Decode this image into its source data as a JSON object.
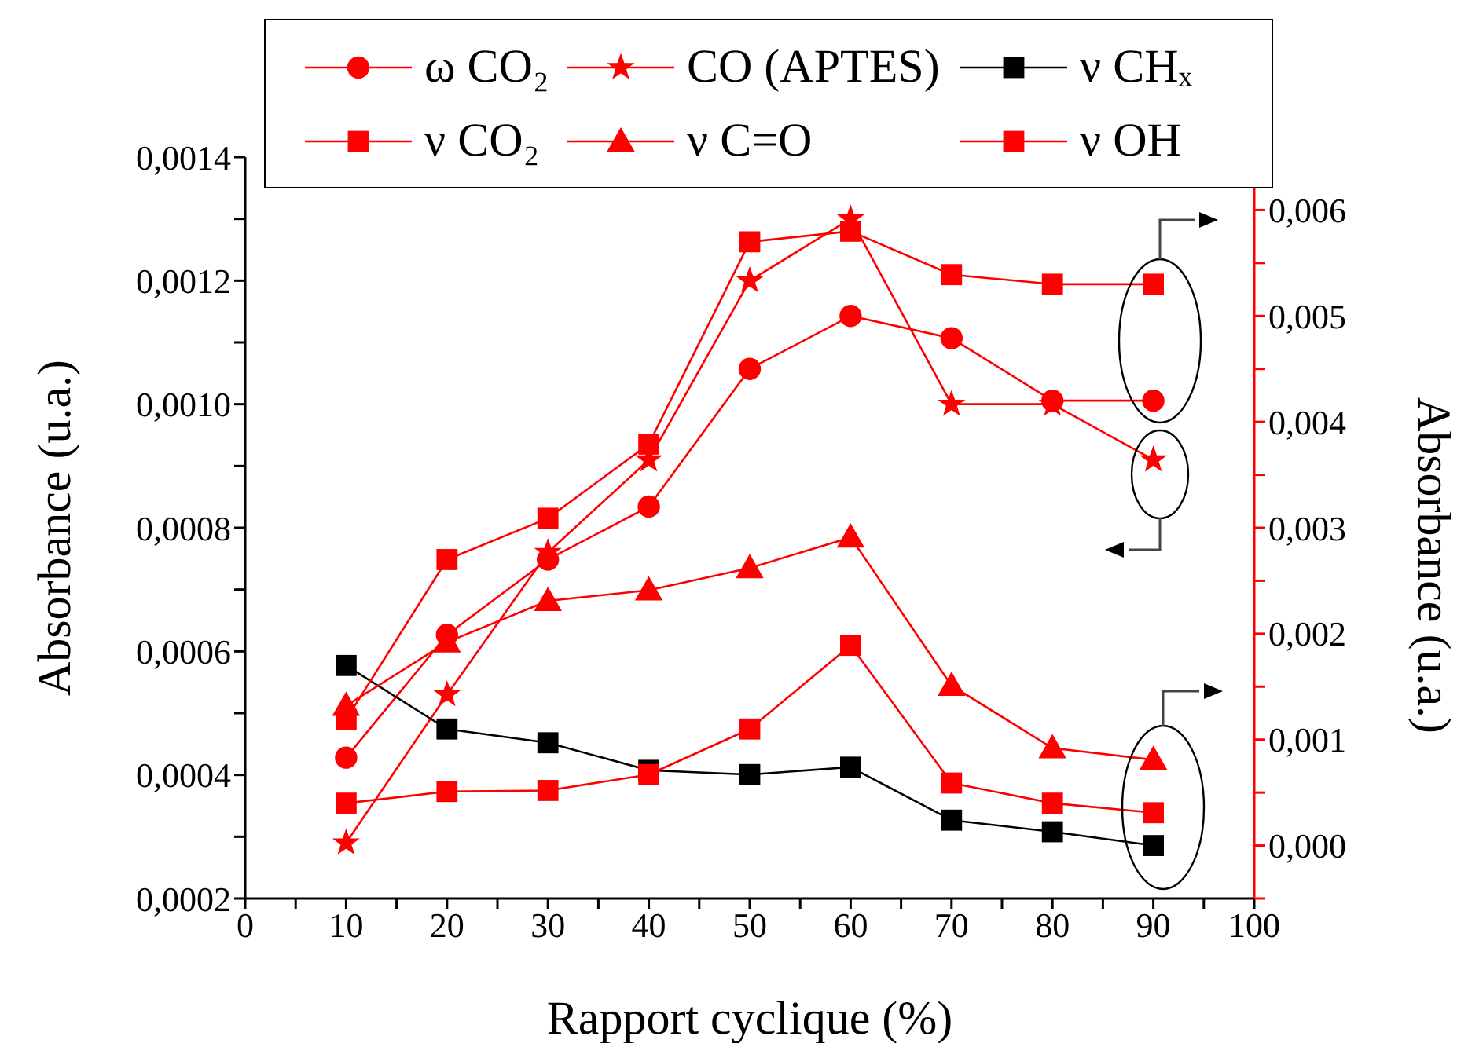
{
  "chart_data": {
    "type": "line",
    "xlabel": "Rapport cyclique (%)",
    "ylabel": "Absorbance (u.a.)",
    "y2label": "Absorbance (u.a.)",
    "x": [
      10,
      20,
      30,
      40,
      50,
      60,
      70,
      80,
      90
    ],
    "series": [
      {
        "name": "ω CO₂",
        "color": "#ff0000",
        "marker": "circle",
        "axis": "y2",
        "values": [
          0.00083,
          0.00199,
          0.0027,
          0.0032,
          0.0045,
          0.005,
          0.00479,
          0.0042,
          0.0042
        ]
      },
      {
        "name": "CO (APTES)",
        "color": "#ff0000",
        "marker": "star",
        "values": [
          0.00029,
          0.00053,
          0.00076,
          0.00091,
          0.0012,
          0.0013,
          0.001,
          0.001,
          0.00091
        ]
      },
      {
        "name": "ν CHₓ",
        "color": "#000000",
        "marker": "square",
        "axis": "y2",
        "values": [
          0.0017,
          0.0011,
          0.00097,
          0.00071,
          0.00067,
          0.00074,
          0.00024,
          0.00013,
          0.0
        ]
      },
      {
        "name": "ν CO₂",
        "color": "#ff0000",
        "marker": "square",
        "axis": "y2",
        "values": [
          0.00119,
          0.0027,
          0.00309,
          0.00379,
          0.0057,
          0.0058,
          0.00539,
          0.0053,
          0.0053
        ]
      },
      {
        "name": "ν C=O",
        "color": "#ff0000",
        "marker": "triangle",
        "axis": "y2",
        "values": [
          0.00132,
          0.00192,
          0.00231,
          0.00241,
          0.00262,
          0.00291,
          0.00151,
          0.00092,
          0.00081
        ]
      },
      {
        "name": "ν OH",
        "color": "#ff0000",
        "marker": "square",
        "axis": "y2",
        "values": [
          0.0004,
          0.00051,
          0.00052,
          0.00067,
          0.0011,
          0.00189,
          0.00059,
          0.0004,
          0.00031
        ]
      }
    ],
    "xlim": [
      0,
      100
    ],
    "xticks": [
      0,
      {
        "value": 5,
        "label": null
      },
      10,
      {
        "value": 15,
        "label": null
      },
      20,
      {
        "value": 25,
        "label": null
      },
      30,
      {
        "value": 35,
        "label": null
      },
      40,
      {
        "value": 45,
        "label": null
      },
      50,
      {
        "value": 55,
        "label": null
      },
      60,
      {
        "value": 65,
        "label": null
      },
      70,
      {
        "value": 75,
        "label": null
      },
      80,
      {
        "value": 85,
        "label": null
      },
      90,
      {
        "value": 95,
        "label": null
      },
      100
    ],
    "ylim": [
      0.0002,
      0.0014
    ],
    "yticks": [
      {
        "value": 0.0002,
        "label": "0,0002"
      },
      {
        "value": 0.0003,
        "label": null
      },
      {
        "value": 0.0004,
        "label": "0,0004"
      },
      {
        "value": 0.0005,
        "label": null
      },
      {
        "value": 0.0006,
        "label": "0,0006"
      },
      {
        "value": 0.0007,
        "label": null
      },
      {
        "value": 0.0008,
        "label": "0,0008"
      },
      {
        "value": 0.0009,
        "label": null
      },
      {
        "value": 0.001,
        "label": "0,0010"
      },
      {
        "value": 0.0011,
        "label": null
      },
      {
        "value": 0.0012,
        "label": "0,0012"
      },
      {
        "value": 0.0013,
        "label": null
      },
      {
        "value": 0.0014,
        "label": "0,0014"
      }
    ],
    "y2lim": [
      -0.0005,
      0.0065
    ],
    "y2ticks": [
      {
        "value": -0.0005,
        "label": null
      },
      {
        "value": 0,
        "label": "0,000"
      },
      {
        "value": 0.0005,
        "label": null
      },
      {
        "value": 0.001,
        "label": "0,001"
      },
      {
        "value": 0.0015,
        "label": null
      },
      {
        "value": 0.002,
        "label": "0,002"
      },
      {
        "value": 0.0025,
        "label": null
      },
      {
        "value": 0.003,
        "label": "0,003"
      },
      {
        "value": 0.0035,
        "label": null
      },
      {
        "value": 0.004,
        "label": "0,004"
      },
      {
        "value": 0.0045,
        "label": null
      },
      {
        "value": 0.005,
        "label": "0,005"
      },
      {
        "value": 0.0055,
        "label": null
      },
      {
        "value": 0.006,
        "label": "0,006"
      },
      {
        "value": 0.0065,
        "label": null
      }
    ],
    "grid": false,
    "legend": "top",
    "line_style": "solid"
  }
}
